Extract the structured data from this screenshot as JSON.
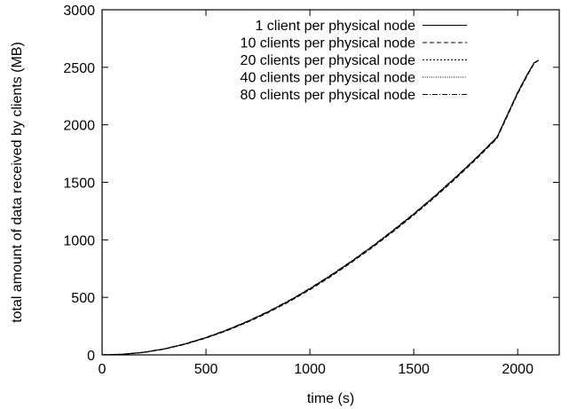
{
  "chart_data": {
    "type": "line",
    "title": "",
    "xlabel": "time (s)",
    "ylabel": "total amount of data received by clients (MB)",
    "xlim": [
      0,
      2200
    ],
    "ylim": [
      0,
      3000
    ],
    "xticks": [
      0,
      500,
      1000,
      1500,
      2000
    ],
    "yticks": [
      0,
      500,
      1000,
      1500,
      2000,
      2500,
      3000
    ],
    "grid": false,
    "legend_position": "top-right",
    "series": [
      {
        "name": "1 client per physical node",
        "dash": "solid",
        "x": [
          0,
          100,
          200,
          300,
          400,
          500,
          600,
          700,
          800,
          900,
          1000,
          1100,
          1200,
          1300,
          1400,
          1500,
          1600,
          1700,
          1800,
          1900,
          2000,
          2050,
          2080,
          2100
        ],
        "y": [
          0,
          5,
          22,
          52,
          95,
          150,
          215,
          290,
          375,
          470,
          575,
          690,
          812,
          942,
          1080,
          1225,
          1378,
          1540,
          1710,
          1890,
          2280,
          2450,
          2540,
          2560
        ]
      },
      {
        "name": "10 clients per physical node",
        "dash": "dashed",
        "x": [
          0,
          100,
          200,
          300,
          400,
          500,
          600,
          700,
          800,
          900,
          1000,
          1100,
          1200,
          1300,
          1400,
          1500,
          1600,
          1700,
          1800,
          1900,
          2000,
          2050,
          2080,
          2100
        ],
        "y": [
          0,
          5,
          21,
          50,
          92,
          146,
          210,
          284,
          368,
          462,
          566,
          680,
          803,
          933,
          1070,
          1215,
          1368,
          1530,
          1700,
          1880,
          2270,
          2440,
          2535,
          2560
        ]
      },
      {
        "name": "20 clients per physical node",
        "dash": "dotted",
        "x": [
          0,
          100,
          200,
          300,
          400,
          500,
          600,
          700,
          800,
          900,
          1000,
          1100,
          1200,
          1300,
          1400,
          1500,
          1600,
          1700,
          1800,
          1900,
          2000,
          2050,
          2080,
          2100
        ],
        "y": [
          0,
          5,
          22,
          51,
          94,
          148,
          213,
          287,
          372,
          466,
          571,
          685,
          808,
          938,
          1075,
          1220,
          1373,
          1535,
          1705,
          1885,
          2275,
          2445,
          2538,
          2560
        ]
      },
      {
        "name": "40 clients per physical node",
        "dash": "fine-dotted",
        "x": [
          0,
          100,
          200,
          300,
          400,
          500,
          600,
          700,
          800,
          900,
          1000,
          1100,
          1200,
          1300,
          1400,
          1500,
          1600,
          1700,
          1800,
          1900,
          2000,
          2050,
          2080,
          2100
        ],
        "y": [
          0,
          5,
          22,
          52,
          95,
          149,
          214,
          289,
          374,
          468,
          573,
          688,
          810,
          940,
          1078,
          1223,
          1376,
          1538,
          1708,
          1888,
          2278,
          2448,
          2539,
          2560
        ]
      },
      {
        "name": "80 clients per physical node",
        "dash": "dash-dot",
        "x": [
          0,
          100,
          200,
          300,
          400,
          500,
          600,
          700,
          800,
          900,
          1000,
          1100,
          1200,
          1300,
          1400,
          1500,
          1600,
          1700,
          1800,
          1900,
          2000,
          2050,
          2080,
          2100
        ],
        "y": [
          0,
          6,
          23,
          53,
          97,
          152,
          218,
          293,
          378,
          473,
          578,
          693,
          815,
          945,
          1083,
          1228,
          1381,
          1543,
          1713,
          1893,
          2283,
          2452,
          2541,
          2560
        ]
      }
    ]
  }
}
